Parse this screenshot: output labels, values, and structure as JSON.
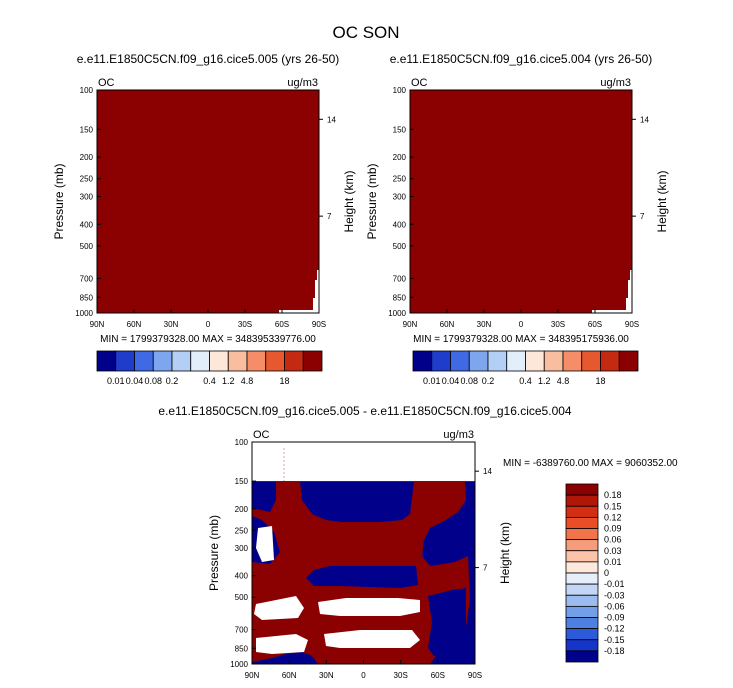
{
  "figure": {
    "title": "OC SON"
  },
  "colors": {
    "dark_red": "#8b0000",
    "navy": "#00008b",
    "white": "#ffffff",
    "line": "#000000",
    "dash": "#d9a0a0"
  },
  "chart_data": [
    {
      "type": "heatmap",
      "title": "e.e11.E1850C5CN.f09_g16.cice5.005 (yrs 26-50)",
      "left_label": "OC",
      "units": "ug/m3",
      "ylabel": "Pressure (mb)",
      "ylabel_right": "Height (km)",
      "x_ticks": [
        "90N",
        "60N",
        "30N",
        "0",
        "30S",
        "60S",
        "90S"
      ],
      "y_ticks": [
        "100",
        "150",
        "200",
        "250",
        "300",
        "400",
        "500",
        "700",
        "850",
        "1000"
      ],
      "y_right_ticks": [
        "14",
        "7"
      ],
      "x_range": [
        "90N",
        "90S"
      ],
      "y_range": [
        1000,
        100
      ],
      "y_scale": "log",
      "stats": "MIN = 1799379328.00  MAX = 348395339776.00",
      "dominant_level": "18",
      "colorbar": {
        "orientation": "horizontal",
        "labels": [
          "0.01",
          "0.04",
          "0.08",
          "0.2",
          "0.4",
          "1.2",
          "4.8",
          "18"
        ],
        "colors": [
          "#00008b",
          "#1f3ccb",
          "#3f6ae4",
          "#7ea6ef",
          "#b4cff5",
          "#e3eefb",
          "#fde7d8",
          "#f9bea0",
          "#f58d68",
          "#e6582e",
          "#c42a12",
          "#8b0000"
        ]
      }
    },
    {
      "type": "heatmap",
      "title": "e.e11.E1850C5CN.f09_g16.cice5.004 (yrs 26-50)",
      "left_label": "OC",
      "units": "ug/m3",
      "ylabel": "Pressure (mb)",
      "ylabel_right": "Height (km)",
      "x_ticks": [
        "90N",
        "60N",
        "30N",
        "0",
        "30S",
        "60S",
        "90S"
      ],
      "y_ticks": [
        "100",
        "150",
        "200",
        "250",
        "300",
        "400",
        "500",
        "700",
        "850",
        "1000"
      ],
      "y_right_ticks": [
        "14",
        "7"
      ],
      "x_range": [
        "90N",
        "90S"
      ],
      "y_range": [
        1000,
        100
      ],
      "y_scale": "log",
      "stats": "MIN = 1799379328.00  MAX = 348395175936.00",
      "dominant_level": "18",
      "colorbar": {
        "orientation": "horizontal",
        "labels": [
          "0.01",
          "0.04",
          "0.08",
          "0.2",
          "0.4",
          "1.2",
          "4.8",
          "18"
        ],
        "colors": [
          "#00008b",
          "#1f3ccb",
          "#3f6ae4",
          "#7ea6ef",
          "#b4cff5",
          "#e3eefb",
          "#fde7d8",
          "#f9bea0",
          "#f58d68",
          "#e6582e",
          "#c42a12",
          "#8b0000"
        ]
      }
    },
    {
      "type": "heatmap",
      "title": "e.e11.E1850C5CN.f09_g16.cice5.005 - e.e11.E1850C5CN.f09_g16.cice5.004",
      "left_label": "OC",
      "units": "ug/m3",
      "ylabel": "Pressure (mb)",
      "ylabel_right": "Height (km)",
      "x_ticks": [
        "90N",
        "60N",
        "30N",
        "0",
        "30S",
        "60S",
        "90S"
      ],
      "y_ticks": [
        "100",
        "150",
        "200",
        "250",
        "300",
        "400",
        "500",
        "700",
        "850",
        "1000"
      ],
      "y_right_ticks": [
        "14",
        "7"
      ],
      "x_range": [
        "90N",
        "90S"
      ],
      "y_range": [
        1000,
        100
      ],
      "y_scale": "log",
      "stats": "MIN = -6389760.00  MAX = 9060352.00",
      "colorbar": {
        "orientation": "vertical",
        "labels": [
          "0.18",
          "0.15",
          "0.12",
          "0.09",
          "0.06",
          "0.03",
          "0.01",
          "0",
          "-0.01",
          "-0.03",
          "-0.06",
          "-0.09",
          "-0.12",
          "-0.15",
          "-0.18"
        ],
        "colors": [
          "#8b0000",
          "#b01708",
          "#d42e12",
          "#ea4e27",
          "#f2744a",
          "#f69b7b",
          "#fac3aa",
          "#fde8dc",
          "#e6eefb",
          "#c4d6f5",
          "#9cbcef",
          "#739fe8",
          "#4f7fe0",
          "#2d5ad8",
          "#1734c8",
          "#00008b"
        ]
      }
    }
  ]
}
